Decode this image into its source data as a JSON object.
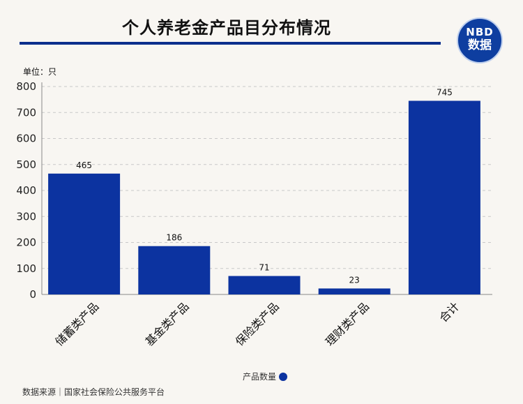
{
  "header": {
    "title": "个人养老金产品目分布情况",
    "logo_top": "NBD",
    "logo_bottom": "数据"
  },
  "unit_label": "单位：只",
  "legend": {
    "label": "产品数量"
  },
  "source": "数据来源｜国家社会保险公共服务平台",
  "colors": {
    "bar": "#0c33a0",
    "title_rule": "#0b2f8c",
    "background": "#f8f6f2"
  },
  "chart_data": {
    "type": "bar",
    "categories": [
      "储蓄类产品",
      "基金类产品",
      "保险类产品",
      "理财类产品",
      "合计"
    ],
    "series": [
      {
        "name": "产品数量",
        "values": [
          465,
          186,
          71,
          23,
          745
        ]
      }
    ],
    "ylim": [
      0,
      800
    ],
    "yticks": [
      0,
      100,
      200,
      300,
      400,
      500,
      600,
      700,
      800
    ],
    "grid": true,
    "legend_position": "bottom"
  }
}
